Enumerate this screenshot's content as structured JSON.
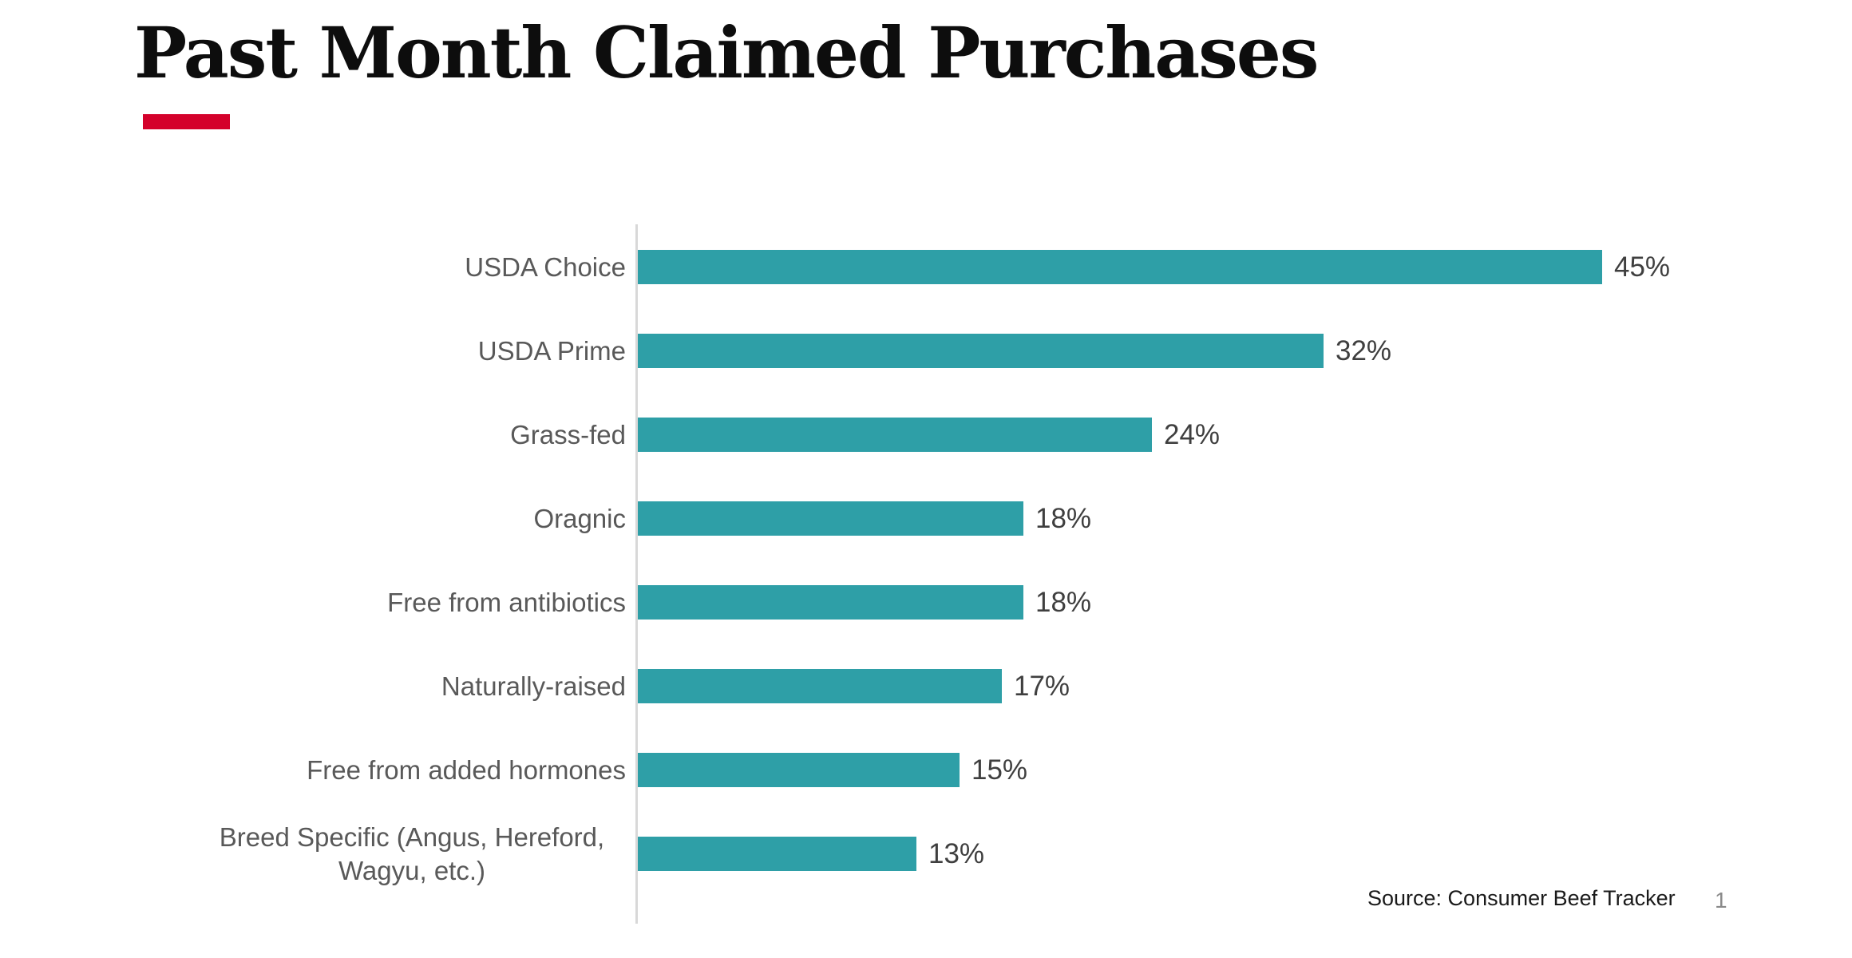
{
  "slide": {
    "title": "Past Month Claimed Purchases",
    "source_label": "Source: Consumer Beef Tracker",
    "page_number": "1"
  },
  "colors": {
    "background": "#ffffff",
    "title_black": "#0d0d0d",
    "accent_red": "#d4012b",
    "bar_teal": "#2e9fa7",
    "category_label_gray": "#595959",
    "value_label_gray": "#3f3f3f",
    "axis_line_gray": "#d8d8d8",
    "source_black": "#1a1a1a",
    "page_number_gray": "#8a8a8a"
  },
  "chart_data": {
    "type": "bar",
    "orientation": "horizontal",
    "title": "Past Month Claimed Purchases",
    "categories": [
      "USDA Choice",
      "USDA Prime",
      "Grass-fed",
      "Oragnic",
      "Free from antibiotics",
      "Naturally-raised",
      "Free from added hormones",
      "Breed Specific (Angus, Hereford, Wagyu, etc.)"
    ],
    "values": [
      45,
      32,
      24,
      18,
      18,
      17,
      15,
      13
    ],
    "data_labels": [
      "45%",
      "32%",
      "24%",
      "18%",
      "18%",
      "17%",
      "15%",
      "13%"
    ],
    "value_suffix": "%",
    "xlabel": "",
    "ylabel": "",
    "xlim": [
      0,
      50
    ],
    "grid": false,
    "legend": false,
    "data_labels_shown": true,
    "category_axis_side": "left"
  }
}
